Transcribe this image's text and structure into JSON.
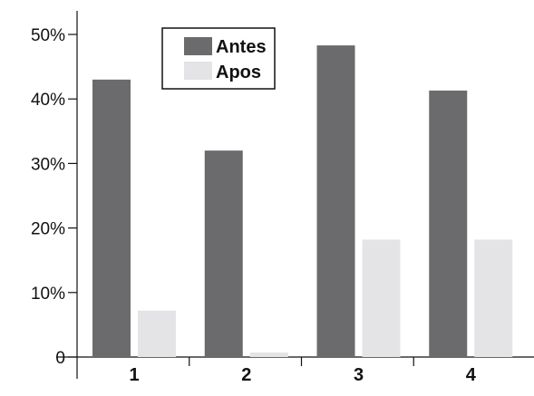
{
  "chart_data": {
    "type": "bar",
    "categories": [
      "1",
      "2",
      "3",
      "4"
    ],
    "series": [
      {
        "name": "Antes",
        "values": [
          43,
          32,
          48.3,
          41.3
        ],
        "color": "#6b6b6e"
      },
      {
        "name": "Apos",
        "values": [
          7.2,
          0.7,
          18.2,
          18.2
        ],
        "color": "#e4e4e6"
      }
    ],
    "yticks": [
      {
        "value": 0,
        "label": "0"
      },
      {
        "value": 10,
        "label": "10%"
      },
      {
        "value": 20,
        "label": "20%"
      },
      {
        "value": 30,
        "label": "30%"
      },
      {
        "value": 40,
        "label": "40%"
      },
      {
        "value": 50,
        "label": "50%"
      }
    ],
    "ylim": [
      0,
      50
    ],
    "grid": false,
    "legend_position": "top-center"
  }
}
